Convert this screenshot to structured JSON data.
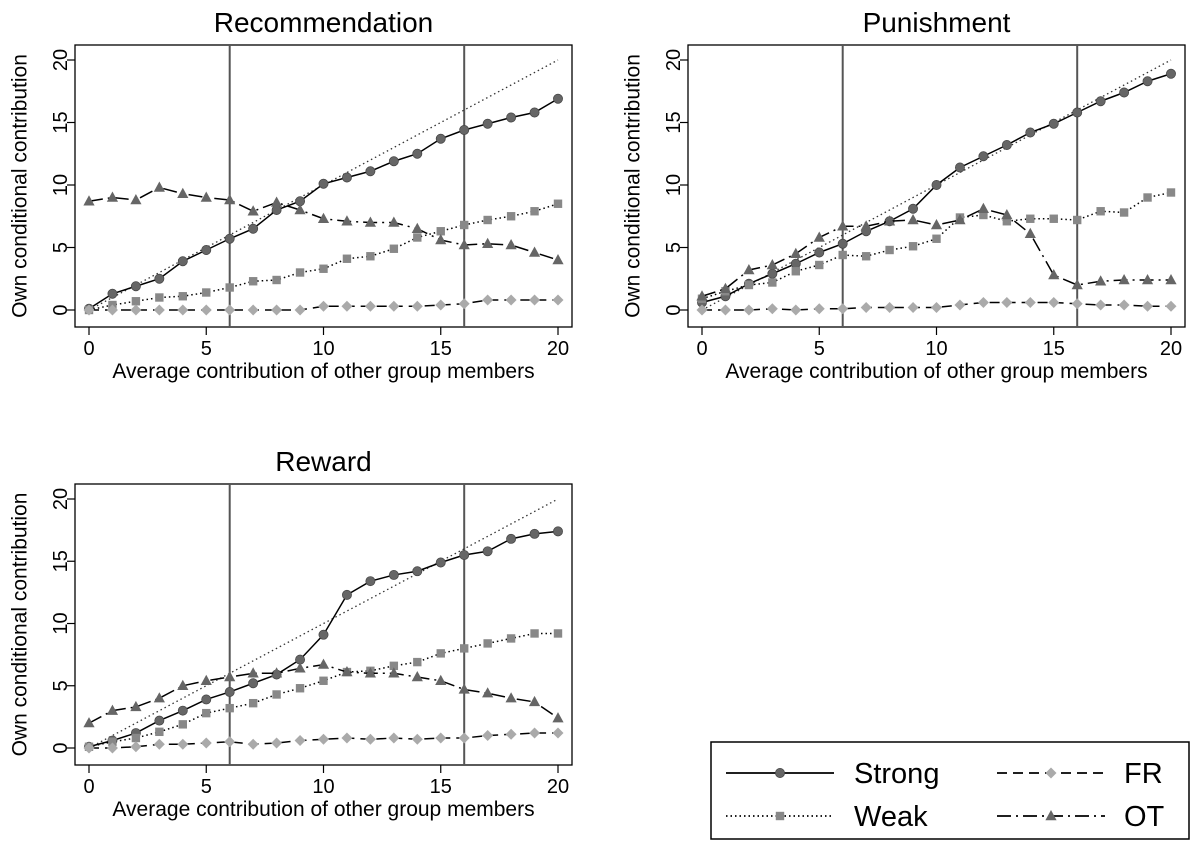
{
  "chart_data": [
    {
      "type": "line",
      "title": "Recommendation",
      "xlabel": "Average contribution of other group members",
      "ylabel": "Own conditional contribution",
      "xlim": [
        0,
        20
      ],
      "ylim": [
        0,
        20
      ],
      "xticks": [
        "0",
        "5",
        "10",
        "15",
        "20"
      ],
      "yticks": [
        "0",
        "5",
        "10",
        "15",
        "20"
      ],
      "vlines": [
        6,
        16
      ],
      "x": [
        0,
        1,
        2,
        3,
        4,
        5,
        6,
        7,
        8,
        9,
        10,
        11,
        12,
        13,
        14,
        15,
        16,
        17,
        18,
        19,
        20
      ],
      "series": [
        {
          "name": "Strong",
          "values": [
            0.1,
            1.3,
            1.9,
            2.5,
            3.9,
            4.8,
            5.7,
            6.5,
            8.0,
            8.7,
            10.1,
            10.6,
            11.1,
            11.9,
            12.5,
            13.7,
            14.4,
            14.9,
            15.4,
            15.8,
            16.9
          ]
        },
        {
          "name": "Weak",
          "values": [
            0,
            0.4,
            0.7,
            1.0,
            1.1,
            1.4,
            1.8,
            2.3,
            2.4,
            3.0,
            3.3,
            4.1,
            4.3,
            4.9,
            5.8,
            6.3,
            6.8,
            7.2,
            7.5,
            7.9,
            8.5
          ]
        },
        {
          "name": "FR",
          "values": [
            0,
            0,
            0,
            0,
            0,
            0,
            0,
            0,
            0,
            0,
            0.3,
            0.3,
            0.3,
            0.3,
            0.3,
            0.4,
            0.5,
            0.8,
            0.8,
            0.8,
            0.8
          ]
        },
        {
          "name": "OT",
          "values": [
            8.7,
            9.0,
            8.8,
            9.8,
            9.3,
            9.0,
            8.8,
            7.9,
            8.6,
            8.0,
            7.3,
            7.1,
            7.0,
            7.0,
            6.5,
            5.6,
            5.2,
            5.3,
            5.2,
            4.6,
            4.0
          ]
        }
      ]
    },
    {
      "type": "line",
      "title": "Punishment",
      "xlabel": "Average contribution of other group members",
      "ylabel": "Own conditional contribution",
      "xlim": [
        0,
        20
      ],
      "ylim": [
        0,
        20
      ],
      "xticks": [
        "0",
        "5",
        "10",
        "15",
        "20"
      ],
      "yticks": [
        "0",
        "5",
        "10",
        "15",
        "20"
      ],
      "vlines": [
        6,
        16
      ],
      "x": [
        0,
        1,
        2,
        3,
        4,
        5,
        6,
        7,
        8,
        9,
        10,
        11,
        12,
        13,
        14,
        15,
        16,
        17,
        18,
        19,
        20
      ],
      "series": [
        {
          "name": "Strong",
          "values": [
            0.6,
            1.1,
            2.1,
            2.9,
            3.7,
            4.6,
            5.3,
            6.3,
            7.1,
            8.1,
            10.0,
            11.4,
            12.3,
            13.2,
            14.2,
            14.9,
            15.8,
            16.7,
            17.4,
            18.3,
            18.9
          ]
        },
        {
          "name": "Weak",
          "values": [
            0.9,
            1.5,
            2.0,
            2.2,
            3.1,
            3.6,
            4.4,
            4.3,
            4.8,
            5.1,
            5.7,
            7.4,
            7.6,
            7.1,
            7.3,
            7.3,
            7.2,
            7.9,
            7.8,
            9.0,
            9.4
          ]
        },
        {
          "name": "FR",
          "values": [
            0,
            0,
            0,
            0.1,
            0,
            0.1,
            0.1,
            0.2,
            0.2,
            0.2,
            0.2,
            0.4,
            0.6,
            0.6,
            0.6,
            0.6,
            0.5,
            0.4,
            0.4,
            0.3,
            0.3
          ]
        },
        {
          "name": "OT",
          "values": [
            1.1,
            1.7,
            3.2,
            3.6,
            4.5,
            5.8,
            6.7,
            6.7,
            7.1,
            7.2,
            6.8,
            7.2,
            8.1,
            7.6,
            6.1,
            2.8,
            2.0,
            2.3,
            2.4,
            2.4,
            2.4
          ]
        }
      ]
    },
    {
      "type": "line",
      "title": "Reward",
      "xlabel": "Average contribution of other group members",
      "ylabel": "Own conditional contribution",
      "xlim": [
        0,
        20
      ],
      "ylim": [
        0,
        20
      ],
      "xticks": [
        "0",
        "5",
        "10",
        "15",
        "20"
      ],
      "yticks": [
        "0",
        "5",
        "10",
        "15",
        "20"
      ],
      "vlines": [
        6,
        16
      ],
      "x": [
        0,
        1,
        2,
        3,
        4,
        5,
        6,
        7,
        8,
        9,
        10,
        11,
        12,
        13,
        14,
        15,
        16,
        17,
        18,
        19,
        20
      ],
      "series": [
        {
          "name": "Strong",
          "values": [
            0.1,
            0.6,
            1.2,
            2.2,
            3.0,
            3.9,
            4.5,
            5.2,
            5.9,
            7.1,
            9.1,
            12.3,
            13.4,
            13.9,
            14.2,
            14.9,
            15.5,
            15.8,
            16.8,
            17.2,
            17.4
          ]
        },
        {
          "name": "Weak",
          "values": [
            0.1,
            0.5,
            0.8,
            1.3,
            1.9,
            2.8,
            3.2,
            3.6,
            4.3,
            4.8,
            5.4,
            6.1,
            6.2,
            6.6,
            6.9,
            7.6,
            8.0,
            8.4,
            8.8,
            9.2,
            9.2
          ]
        },
        {
          "name": "FR",
          "values": [
            0,
            0,
            0.1,
            0.3,
            0.3,
            0.4,
            0.5,
            0.3,
            0.4,
            0.6,
            0.7,
            0.8,
            0.7,
            0.8,
            0.7,
            0.8,
            0.8,
            1.0,
            1.1,
            1.2,
            1.2
          ]
        },
        {
          "name": "OT",
          "values": [
            2.0,
            3.0,
            3.3,
            4.0,
            5.0,
            5.4,
            5.7,
            6.0,
            6.0,
            6.4,
            6.7,
            6.1,
            6.0,
            6.0,
            5.7,
            5.4,
            4.7,
            4.4,
            4.0,
            3.7,
            2.4
          ]
        }
      ]
    }
  ],
  "legend": {
    "items": [
      {
        "name": "Strong",
        "label": "Strong"
      },
      {
        "name": "FR",
        "label": "FR"
      },
      {
        "name": "Weak",
        "label": "Weak"
      },
      {
        "name": "OT",
        "label": "OT"
      }
    ]
  },
  "style": {
    "vline_color": "#555555",
    "marker_dark": "#666666",
    "marker_mid": "#888888",
    "marker_light": "#aaaaaa",
    "diagonal_color": "#333333"
  }
}
